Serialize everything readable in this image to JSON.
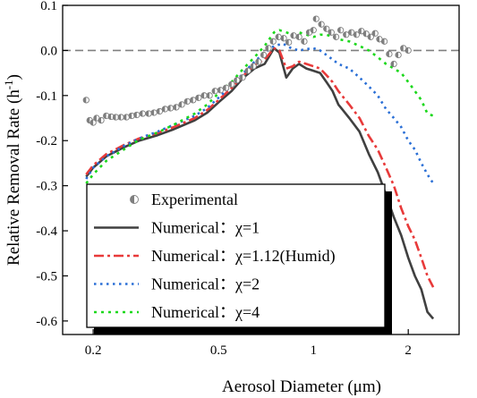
{
  "chart_data": {
    "type": "line",
    "title": "",
    "xlabel": "Aerosol Diameter (μm)",
    "ylabel_main": "Relative Removal Rate (h",
    "ylabel_sup": "-1",
    "ylabel_close": ")",
    "x_scale": "log",
    "xlim": [
      0.16,
      2.9
    ],
    "ylim": [
      -0.63,
      0.1
    ],
    "x_ticks": [
      0.2,
      0.5,
      1,
      2
    ],
    "x_tick_labels": [
      "0.2",
      "0.5",
      "1",
      "2"
    ],
    "y_ticks": [
      0.1,
      0.0,
      -0.1,
      -0.2,
      -0.3,
      -0.4,
      -0.5,
      -0.6
    ],
    "y_tick_labels": [
      "0.1",
      "0.0",
      "-0.1",
      "-0.2",
      "-0.3",
      "-0.4",
      "-0.5",
      "-0.6"
    ],
    "reference_line": {
      "y": 0,
      "style": "dashed",
      "color": "#808080"
    },
    "legend_position": "bottom-left",
    "series": [
      {
        "name": "Experimental",
        "kind": "scatter",
        "marker": "half-filled-circle",
        "color": "#7f7f7f",
        "points": [
          [
            0.19,
            -0.11
          ],
          [
            0.195,
            -0.155
          ],
          [
            0.2,
            -0.16
          ],
          [
            0.205,
            -0.15
          ],
          [
            0.212,
            -0.155
          ],
          [
            0.22,
            -0.145
          ],
          [
            0.228,
            -0.147
          ],
          [
            0.236,
            -0.148
          ],
          [
            0.245,
            -0.148
          ],
          [
            0.255,
            -0.148
          ],
          [
            0.265,
            -0.145
          ],
          [
            0.275,
            -0.143
          ],
          [
            0.287,
            -0.14
          ],
          [
            0.3,
            -0.14
          ],
          [
            0.312,
            -0.138
          ],
          [
            0.325,
            -0.135
          ],
          [
            0.338,
            -0.13
          ],
          [
            0.352,
            -0.128
          ],
          [
            0.367,
            -0.126
          ],
          [
            0.382,
            -0.12
          ],
          [
            0.398,
            -0.113
          ],
          [
            0.415,
            -0.11
          ],
          [
            0.432,
            -0.105
          ],
          [
            0.45,
            -0.1
          ],
          [
            0.468,
            -0.1
          ],
          [
            0.487,
            -0.09
          ],
          [
            0.507,
            -0.088
          ],
          [
            0.528,
            -0.083
          ],
          [
            0.55,
            -0.075
          ],
          [
            0.572,
            -0.066
          ],
          [
            0.596,
            -0.06
          ],
          [
            0.62,
            -0.045
          ],
          [
            0.645,
            -0.035
          ],
          [
            0.67,
            -0.025
          ],
          [
            0.695,
            -0.01
          ],
          [
            0.72,
            0.005
          ],
          [
            0.745,
            0.02
          ],
          [
            0.775,
            0.03
          ],
          [
            0.805,
            0.027
          ],
          [
            0.835,
            0.018
          ],
          [
            0.865,
            0.033
          ],
          [
            0.9,
            0.03
          ],
          [
            0.935,
            0.02
          ],
          [
            0.97,
            0.04
          ],
          [
            1.0,
            0.045
          ],
          [
            1.02,
            0.07
          ],
          [
            1.06,
            0.058
          ],
          [
            1.1,
            0.048
          ],
          [
            1.14,
            0.04
          ],
          [
            1.18,
            0.03
          ],
          [
            1.22,
            0.045
          ],
          [
            1.27,
            0.035
          ],
          [
            1.32,
            0.04
          ],
          [
            1.37,
            0.035
          ],
          [
            1.42,
            0.043
          ],
          [
            1.47,
            0.037
          ],
          [
            1.52,
            0.03
          ],
          [
            1.57,
            0.038
          ],
          [
            1.62,
            0.025
          ],
          [
            1.68,
            0.02
          ],
          [
            1.74,
            -0.008
          ],
          [
            1.8,
            -0.03
          ],
          [
            1.86,
            -0.01
          ],
          [
            1.93,
            0.005
          ],
          [
            2.0,
            0.0
          ]
        ]
      },
      {
        "name": "Numerical：χ=1",
        "kind": "line",
        "color": "#404040",
        "dash": "",
        "width": 2.6,
        "points": [
          [
            0.19,
            -0.28
          ],
          [
            0.2,
            -0.26
          ],
          [
            0.22,
            -0.235
          ],
          [
            0.25,
            -0.215
          ],
          [
            0.28,
            -0.2
          ],
          [
            0.32,
            -0.188
          ],
          [
            0.36,
            -0.175
          ],
          [
            0.42,
            -0.155
          ],
          [
            0.46,
            -0.138
          ],
          [
            0.5,
            -0.115
          ],
          [
            0.55,
            -0.09
          ],
          [
            0.6,
            -0.06
          ],
          [
            0.65,
            -0.04
          ],
          [
            0.7,
            -0.03
          ],
          [
            0.75,
            0.005
          ],
          [
            0.78,
            -0.005
          ],
          [
            0.82,
            -0.06
          ],
          [
            0.86,
            -0.04
          ],
          [
            0.9,
            -0.03
          ],
          [
            0.95,
            -0.04
          ],
          [
            1.0,
            -0.045
          ],
          [
            1.05,
            -0.05
          ],
          [
            1.1,
            -0.07
          ],
          [
            1.15,
            -0.09
          ],
          [
            1.2,
            -0.12
          ],
          [
            1.3,
            -0.15
          ],
          [
            1.4,
            -0.18
          ],
          [
            1.5,
            -0.23
          ],
          [
            1.6,
            -0.27
          ],
          [
            1.7,
            -0.32
          ],
          [
            1.8,
            -0.37
          ],
          [
            1.9,
            -0.41
          ],
          [
            2.0,
            -0.46
          ],
          [
            2.1,
            -0.5
          ],
          [
            2.2,
            -0.53
          ],
          [
            2.3,
            -0.58
          ],
          [
            2.4,
            -0.595
          ]
        ]
      },
      {
        "name": "Numerical：χ=1.12(Humid)",
        "kind": "line",
        "color": "#e83a3a",
        "dash": "11,4,3,4",
        "width": 2.6,
        "points": [
          [
            0.19,
            -0.275
          ],
          [
            0.2,
            -0.255
          ],
          [
            0.22,
            -0.23
          ],
          [
            0.25,
            -0.21
          ],
          [
            0.28,
            -0.195
          ],
          [
            0.32,
            -0.183
          ],
          [
            0.36,
            -0.17
          ],
          [
            0.42,
            -0.15
          ],
          [
            0.46,
            -0.132
          ],
          [
            0.5,
            -0.11
          ],
          [
            0.55,
            -0.083
          ],
          [
            0.6,
            -0.055
          ],
          [
            0.65,
            -0.033
          ],
          [
            0.7,
            -0.02
          ],
          [
            0.75,
            0.005
          ],
          [
            0.78,
            0.0
          ],
          [
            0.82,
            -0.04
          ],
          [
            0.86,
            -0.035
          ],
          [
            0.9,
            -0.025
          ],
          [
            0.95,
            -0.03
          ],
          [
            1.0,
            -0.035
          ],
          [
            1.05,
            -0.04
          ],
          [
            1.1,
            -0.055
          ],
          [
            1.15,
            -0.07
          ],
          [
            1.2,
            -0.09
          ],
          [
            1.3,
            -0.12
          ],
          [
            1.4,
            -0.15
          ],
          [
            1.5,
            -0.19
          ],
          [
            1.6,
            -0.22
          ],
          [
            1.7,
            -0.26
          ],
          [
            1.8,
            -0.3
          ],
          [
            1.9,
            -0.35
          ],
          [
            2.0,
            -0.39
          ],
          [
            2.1,
            -0.42
          ],
          [
            2.2,
            -0.46
          ],
          [
            2.3,
            -0.5
          ],
          [
            2.4,
            -0.525
          ]
        ]
      },
      {
        "name": "Numerical：χ=2",
        "kind": "line",
        "color": "#2a6fd6",
        "dash": "2.5,4.5",
        "width": 2.6,
        "points": [
          [
            0.19,
            -0.285
          ],
          [
            0.2,
            -0.26
          ],
          [
            0.22,
            -0.235
          ],
          [
            0.25,
            -0.212
          ],
          [
            0.28,
            -0.195
          ],
          [
            0.32,
            -0.18
          ],
          [
            0.36,
            -0.165
          ],
          [
            0.42,
            -0.145
          ],
          [
            0.46,
            -0.128
          ],
          [
            0.5,
            -0.105
          ],
          [
            0.55,
            -0.078
          ],
          [
            0.6,
            -0.05
          ],
          [
            0.65,
            -0.025
          ],
          [
            0.7,
            -0.005
          ],
          [
            0.75,
            0.01
          ],
          [
            0.8,
            0.015
          ],
          [
            0.85,
            0.005
          ],
          [
            0.9,
            0.0
          ],
          [
            0.95,
            0.003
          ],
          [
            1.0,
            0.005
          ],
          [
            1.05,
            0.0
          ],
          [
            1.1,
            -0.01
          ],
          [
            1.15,
            -0.02
          ],
          [
            1.2,
            -0.03
          ],
          [
            1.3,
            -0.04
          ],
          [
            1.4,
            -0.06
          ],
          [
            1.5,
            -0.08
          ],
          [
            1.6,
            -0.1
          ],
          [
            1.7,
            -0.13
          ],
          [
            1.8,
            -0.15
          ],
          [
            1.9,
            -0.17
          ],
          [
            2.0,
            -0.2
          ],
          [
            2.1,
            -0.22
          ],
          [
            2.2,
            -0.25
          ],
          [
            2.3,
            -0.275
          ],
          [
            2.4,
            -0.295
          ]
        ]
      },
      {
        "name": "Numerical：χ=4",
        "kind": "line",
        "color": "#1cd81c",
        "dash": "3,5",
        "width": 2.6,
        "points": [
          [
            0.19,
            -0.295
          ],
          [
            0.2,
            -0.275
          ],
          [
            0.22,
            -0.245
          ],
          [
            0.25,
            -0.22
          ],
          [
            0.28,
            -0.198
          ],
          [
            0.32,
            -0.182
          ],
          [
            0.36,
            -0.165
          ],
          [
            0.42,
            -0.14
          ],
          [
            0.46,
            -0.12
          ],
          [
            0.5,
            -0.095
          ],
          [
            0.55,
            -0.07
          ],
          [
            0.6,
            -0.04
          ],
          [
            0.65,
            -0.015
          ],
          [
            0.7,
            0.01
          ],
          [
            0.75,
            0.04
          ],
          [
            0.78,
            0.045
          ],
          [
            0.82,
            0.04
          ],
          [
            0.86,
            0.035
          ],
          [
            0.9,
            0.04
          ],
          [
            0.95,
            0.035
          ],
          [
            1.0,
            0.03
          ],
          [
            1.05,
            0.035
          ],
          [
            1.1,
            0.035
          ],
          [
            1.15,
            0.03
          ],
          [
            1.2,
            0.025
          ],
          [
            1.3,
            0.02
          ],
          [
            1.4,
            0.01
          ],
          [
            1.5,
            0.0
          ],
          [
            1.6,
            -0.015
          ],
          [
            1.7,
            -0.03
          ],
          [
            1.8,
            -0.04
          ],
          [
            1.9,
            -0.05
          ],
          [
            2.0,
            -0.07
          ],
          [
            2.1,
            -0.09
          ],
          [
            2.2,
            -0.11
          ],
          [
            2.3,
            -0.14
          ],
          [
            2.4,
            -0.145
          ]
        ]
      }
    ]
  }
}
